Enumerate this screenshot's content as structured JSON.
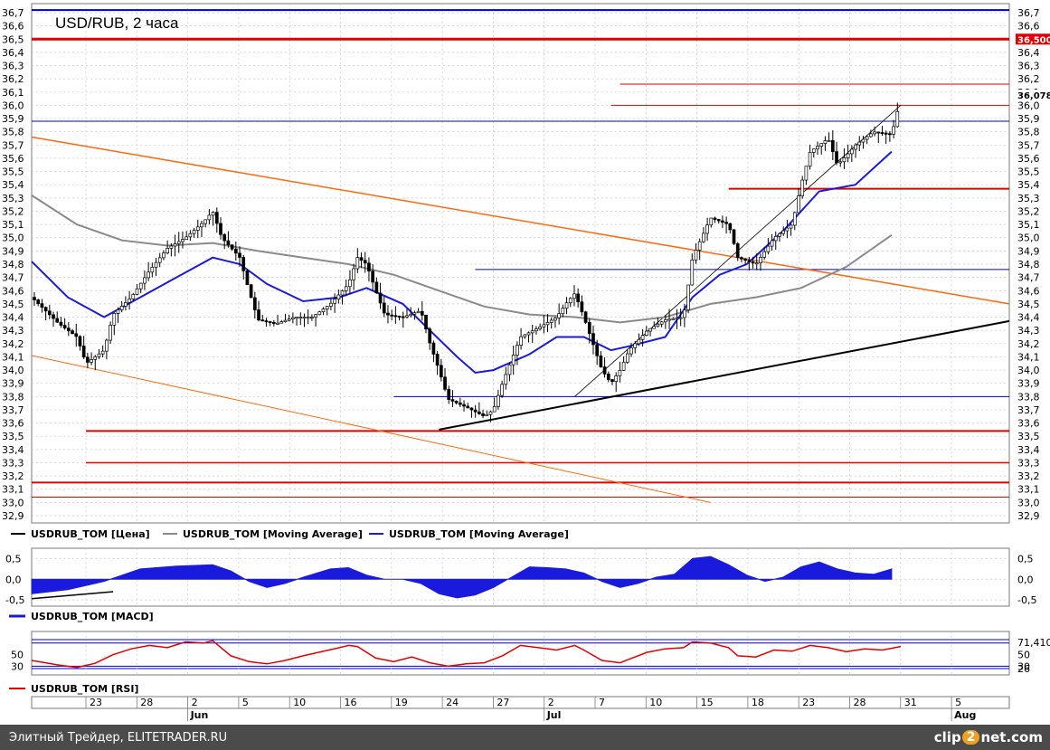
{
  "chart_data": [
    {
      "type": "candlestick",
      "title": "USD/RUB, 2 часа",
      "xlim": [
        0,
        108
      ],
      "ylim": [
        32.85,
        36.75
      ],
      "yticks": [
        32.9,
        33.0,
        33.1,
        33.2,
        33.3,
        33.4,
        33.5,
        33.6,
        33.7,
        33.8,
        33.9,
        34.0,
        34.1,
        34.2,
        34.3,
        34.4,
        34.5,
        34.6,
        34.7,
        34.8,
        34.9,
        35.0,
        35.1,
        35.2,
        35.3,
        35.4,
        35.5,
        35.6,
        35.7,
        35.8,
        35.9,
        36.0,
        36.1,
        36.2,
        36.3,
        36.4,
        36.5,
        36.6,
        36.7
      ],
      "ytick_labels": [
        "32,9",
        "33,0",
        "33,1",
        "33,2",
        "33,3",
        "33,4",
        "33,5",
        "33,6",
        "33,7",
        "33,8",
        "33,9",
        "34,0",
        "34,1",
        "34,2",
        "34,3",
        "34,4",
        "34,5",
        "34,6",
        "34,7",
        "34,8",
        "34,9",
        "35,0",
        "35,1",
        "35,2",
        "35,3",
        "35,4",
        "35,5",
        "35,6",
        "35,7",
        "35,8",
        "35,9",
        "36,0",
        "36,1",
        "36,2",
        "36,3",
        "36,4",
        "36,5",
        "36,6",
        "36,7"
      ],
      "last_price_label": "36,078",
      "level_label": "36,500",
      "price_path": [
        [
          0,
          34.55
        ],
        [
          3,
          34.35
        ],
        [
          5,
          34.25
        ],
        [
          6,
          34.05
        ],
        [
          8,
          34.15
        ],
        [
          9,
          34.42
        ],
        [
          11,
          34.55
        ],
        [
          13,
          34.75
        ],
        [
          15,
          34.92
        ],
        [
          17,
          35.0
        ],
        [
          19,
          35.12
        ],
        [
          20,
          35.2
        ],
        [
          21,
          35.0
        ],
        [
          23,
          34.85
        ],
        [
          24,
          34.6
        ],
        [
          25,
          34.38
        ],
        [
          27,
          34.35
        ],
        [
          29,
          34.4
        ],
        [
          31,
          34.4
        ],
        [
          33,
          34.5
        ],
        [
          35,
          34.65
        ],
        [
          36,
          34.85
        ],
        [
          37,
          34.8
        ],
        [
          38,
          34.6
        ],
        [
          39,
          34.42
        ],
        [
          41,
          34.4
        ],
        [
          43,
          34.45
        ],
        [
          44,
          34.2
        ],
        [
          45,
          34.0
        ],
        [
          46,
          33.78
        ],
        [
          48,
          33.72
        ],
        [
          50,
          33.65
        ],
        [
          51,
          33.7
        ],
        [
          52,
          33.9
        ],
        [
          54,
          34.25
        ],
        [
          56,
          34.32
        ],
        [
          58,
          34.4
        ],
        [
          59,
          34.5
        ],
        [
          60,
          34.58
        ],
        [
          61,
          34.4
        ],
        [
          62,
          34.2
        ],
        [
          63,
          34.0
        ],
        [
          64,
          33.9
        ],
        [
          65,
          34.0
        ],
        [
          66,
          34.15
        ],
        [
          68,
          34.3
        ],
        [
          70,
          34.38
        ],
        [
          72,
          34.4
        ],
        [
          73,
          34.85
        ],
        [
          75,
          35.15
        ],
        [
          77,
          35.1
        ],
        [
          78,
          34.85
        ],
        [
          80,
          34.8
        ],
        [
          82,
          35.0
        ],
        [
          84,
          35.1
        ],
        [
          85,
          35.4
        ],
        [
          86,
          35.65
        ],
        [
          88,
          35.75
        ],
        [
          89,
          35.55
        ],
        [
          90,
          35.62
        ],
        [
          91,
          35.7
        ],
        [
          93,
          35.8
        ],
        [
          95,
          35.78
        ],
        [
          96,
          36.05
        ]
      ],
      "price_band": 0.08,
      "series": [
        {
          "name": "USDRUB_TOM [Цена]",
          "color": "#000000"
        },
        {
          "name": "USDRUB_TOM [Moving Average]",
          "color": "#8a8a8a",
          "points": [
            [
              0,
              35.32
            ],
            [
              5,
              35.1
            ],
            [
              10,
              34.98
            ],
            [
              15,
              34.94
            ],
            [
              20,
              34.96
            ],
            [
              25,
              34.9
            ],
            [
              30,
              34.85
            ],
            [
              35,
              34.8
            ],
            [
              40,
              34.72
            ],
            [
              45,
              34.6
            ],
            [
              50,
              34.48
            ],
            [
              55,
              34.42
            ],
            [
              60,
              34.4
            ],
            [
              65,
              34.36
            ],
            [
              70,
              34.4
            ],
            [
              75,
              34.5
            ],
            [
              80,
              34.55
            ],
            [
              85,
              34.62
            ],
            [
              90,
              34.78
            ],
            [
              95,
              35.02
            ]
          ]
        },
        {
          "name": "USDRUB_TOM [Moving Average]",
          "color": "#1a1adc",
          "points": [
            [
              0,
              34.82
            ],
            [
              4,
              34.55
            ],
            [
              8,
              34.4
            ],
            [
              12,
              34.55
            ],
            [
              16,
              34.7
            ],
            [
              20,
              34.85
            ],
            [
              23,
              34.8
            ],
            [
              26,
              34.65
            ],
            [
              30,
              34.52
            ],
            [
              34,
              34.55
            ],
            [
              37,
              34.62
            ],
            [
              41,
              34.5
            ],
            [
              44,
              34.3
            ],
            [
              47,
              34.1
            ],
            [
              49,
              33.98
            ],
            [
              51,
              34.0
            ],
            [
              55,
              34.12
            ],
            [
              58,
              34.25
            ],
            [
              61,
              34.25
            ],
            [
              64,
              34.15
            ],
            [
              66,
              34.18
            ],
            [
              70,
              34.25
            ],
            [
              73,
              34.55
            ],
            [
              76,
              34.72
            ],
            [
              79,
              34.8
            ],
            [
              83,
              35.05
            ],
            [
              87,
              35.35
            ],
            [
              91,
              35.4
            ],
            [
              95,
              35.65
            ]
          ]
        }
      ],
      "trendlines": [
        {
          "color": "#ff6a10",
          "from": [
            0,
            35.76
          ],
          "to": [
            108,
            34.5
          ],
          "width": 1.5
        },
        {
          "color": "#ff6a10",
          "from": [
            0,
            34.11
          ],
          "to": [
            75,
            33.0
          ],
          "width": 1
        },
        {
          "color": "#000000",
          "from": [
            45,
            33.55
          ],
          "to": [
            108,
            34.37
          ],
          "width": 2
        },
        {
          "color": "#000000",
          "from": [
            60,
            33.8
          ],
          "to": [
            96,
            36.0
          ],
          "width": 0.8
        }
      ],
      "hlines": [
        {
          "y": 36.72,
          "color": "#0000cc",
          "from": 0,
          "to": 108,
          "width": 2
        },
        {
          "y": 36.5,
          "color": "#e00000",
          "from": 0,
          "to": 108,
          "width": 3
        },
        {
          "y": 36.16,
          "color": "#e00000",
          "from": 65,
          "to": 108,
          "width": 1
        },
        {
          "y": 36.0,
          "color": "#e00000",
          "from": 64,
          "to": 108,
          "width": 1
        },
        {
          "y": 35.88,
          "color": "#0000cc",
          "from": 0,
          "to": 108,
          "width": 1
        },
        {
          "y": 35.37,
          "color": "#e00000",
          "from": 77,
          "to": 108,
          "width": 2
        },
        {
          "y": 34.76,
          "color": "#0000cc",
          "from": 49,
          "to": 108,
          "width": 1
        },
        {
          "y": 33.8,
          "color": "#0000cc",
          "from": 40,
          "to": 108,
          "width": 1
        },
        {
          "y": 33.54,
          "color": "#e00000",
          "from": 6,
          "to": 108,
          "width": 2
        },
        {
          "y": 33.3,
          "color": "#e00000",
          "from": 6,
          "to": 108,
          "width": 1.5
        },
        {
          "y": 33.15,
          "color": "#e00000",
          "from": 0,
          "to": 108,
          "width": 2
        },
        {
          "y": 33.04,
          "color": "#e00000",
          "from": 0,
          "to": 108,
          "width": 1
        }
      ]
    },
    {
      "type": "area",
      "name": "USDRUB_TOM [MACD]",
      "color": "#1a1adc",
      "ylim": [
        -0.65,
        0.75
      ],
      "yticks": [
        -0.5,
        0.0,
        0.5
      ],
      "ytick_labels": [
        "-0,5",
        "0,0",
        "0,5"
      ],
      "points": [
        [
          0,
          -0.35
        ],
        [
          4,
          -0.25
        ],
        [
          8,
          -0.05
        ],
        [
          12,
          0.25
        ],
        [
          16,
          0.32
        ],
        [
          20,
          0.35
        ],
        [
          22,
          0.2
        ],
        [
          24,
          -0.05
        ],
        [
          26,
          -0.2
        ],
        [
          28,
          -0.1
        ],
        [
          30,
          0.05
        ],
        [
          33,
          0.25
        ],
        [
          35,
          0.28
        ],
        [
          37,
          0.1
        ],
        [
          39,
          0.0
        ],
        [
          41,
          0.0
        ],
        [
          43,
          -0.1
        ],
        [
          45,
          -0.35
        ],
        [
          47,
          -0.45
        ],
        [
          49,
          -0.38
        ],
        [
          51,
          -0.2
        ],
        [
          53,
          0.05
        ],
        [
          55,
          0.3
        ],
        [
          57,
          0.28
        ],
        [
          59,
          0.25
        ],
        [
          61,
          0.15
        ],
        [
          63,
          -0.05
        ],
        [
          65,
          -0.2
        ],
        [
          67,
          -0.1
        ],
        [
          69,
          0.05
        ],
        [
          71,
          0.12
        ],
        [
          73,
          0.5
        ],
        [
          75,
          0.55
        ],
        [
          77,
          0.35
        ],
        [
          79,
          0.1
        ],
        [
          81,
          -0.05
        ],
        [
          83,
          0.05
        ],
        [
          85,
          0.3
        ],
        [
          87,
          0.42
        ],
        [
          89,
          0.25
        ],
        [
          91,
          0.15
        ],
        [
          93,
          0.12
        ],
        [
          95,
          0.25
        ]
      ],
      "signal_line": [
        [
          0,
          -0.47
        ],
        [
          9,
          -0.3
        ]
      ]
    },
    {
      "type": "line",
      "name": "USDRUB_TOM [RSI]",
      "color": "#e00000",
      "ylim": [
        15,
        90
      ],
      "yticks": [
        30,
        50
      ],
      "ytick_labels": [
        "30",
        "50"
      ],
      "levels": [
        {
          "y": 70,
          "color": "#0000cc"
        },
        {
          "y": 30,
          "color": "#0000cc"
        },
        {
          "y": 76,
          "color": "#0000cc"
        },
        {
          "y": 26,
          "color": "#0000cc"
        }
      ],
      "right_labels": [
        "71,410",
        "50",
        "30",
        "26"
      ],
      "points": [
        [
          0,
          40
        ],
        [
          3,
          32
        ],
        [
          5,
          28
        ],
        [
          7,
          35
        ],
        [
          9,
          50
        ],
        [
          11,
          60
        ],
        [
          13,
          66
        ],
        [
          15,
          62
        ],
        [
          17,
          72
        ],
        [
          19,
          70
        ],
        [
          20,
          74
        ],
        [
          22,
          48
        ],
        [
          24,
          38
        ],
        [
          26,
          34
        ],
        [
          28,
          40
        ],
        [
          30,
          48
        ],
        [
          32,
          55
        ],
        [
          34,
          62
        ],
        [
          35,
          66
        ],
        [
          36,
          64
        ],
        [
          38,
          44
        ],
        [
          40,
          38
        ],
        [
          42,
          46
        ],
        [
          44,
          36
        ],
        [
          46,
          30
        ],
        [
          48,
          34
        ],
        [
          50,
          36
        ],
        [
          52,
          48
        ],
        [
          54,
          66
        ],
        [
          56,
          62
        ],
        [
          58,
          58
        ],
        [
          60,
          66
        ],
        [
          61,
          58
        ],
        [
          63,
          40
        ],
        [
          65,
          36
        ],
        [
          66,
          42
        ],
        [
          68,
          54
        ],
        [
          70,
          60
        ],
        [
          72,
          62
        ],
        [
          73,
          72
        ],
        [
          75,
          70
        ],
        [
          77,
          62
        ],
        [
          78,
          48
        ],
        [
          80,
          46
        ],
        [
          82,
          58
        ],
        [
          84,
          56
        ],
        [
          86,
          66
        ],
        [
          88,
          62
        ],
        [
          90,
          55
        ],
        [
          92,
          60
        ],
        [
          94,
          58
        ],
        [
          96,
          64
        ]
      ]
    }
  ],
  "x_axis": {
    "day_labels": [
      "23",
      "28",
      "2",
      "5",
      "10",
      "16",
      "19",
      "24",
      "27",
      "2",
      "7",
      "10",
      "15",
      "18",
      "23",
      "28",
      "31",
      "5"
    ],
    "month_labels": [
      "Jun",
      "Jul",
      "Aug"
    ]
  },
  "legend_items": [
    {
      "label": "USDRUB_TOM [Цена]",
      "color": "#000000"
    },
    {
      "label": "USDRUB_TOM [Moving Average]",
      "color": "#8a8a8a"
    },
    {
      "label": "USDRUB_TOM [Moving Average]",
      "color": "#1a1adc"
    }
  ],
  "footer": {
    "site": "Элитный Трейдер, ELITETRADER.RU",
    "logo_a": "clip",
    "logo_b": "2",
    "logo_c": "net.com"
  }
}
